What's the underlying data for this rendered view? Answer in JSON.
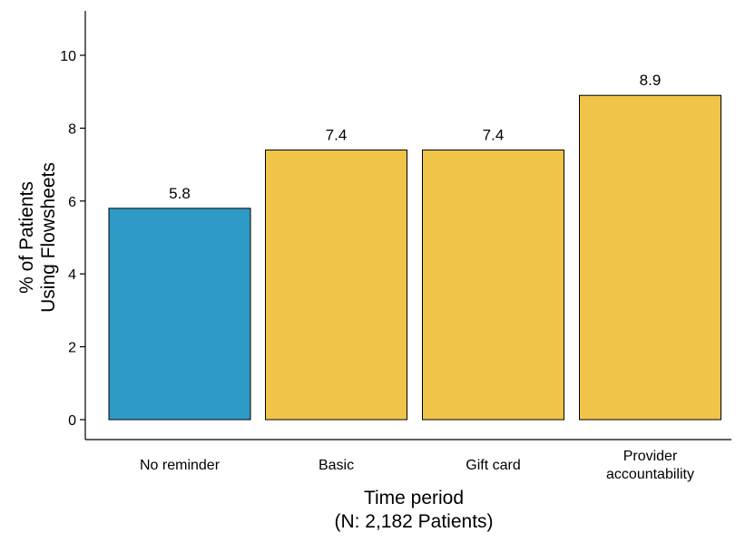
{
  "chart_data": {
    "type": "bar",
    "categories": [
      [
        "No reminder"
      ],
      [
        "Basic"
      ],
      [
        "Gift card"
      ],
      [
        "Provider",
        "accountability"
      ]
    ],
    "values": [
      5.8,
      7.4,
      7.4,
      8.9
    ],
    "data_labels": [
      "5.8",
      "7.4",
      "7.4",
      "8.9"
    ],
    "colors": [
      "#2E9AC6",
      "#F0C449",
      "#F0C449",
      "#F0C449"
    ],
    "ylabel": [
      "% of Patients",
      "Using Flowsheets"
    ],
    "xlabel": [
      "Time period",
      "(N: 2,182 Patients)"
    ],
    "ylim": [
      0,
      11.2
    ],
    "yticks": [
      0,
      2,
      4,
      6,
      8,
      10
    ],
    "grid": false,
    "legend": "none"
  }
}
